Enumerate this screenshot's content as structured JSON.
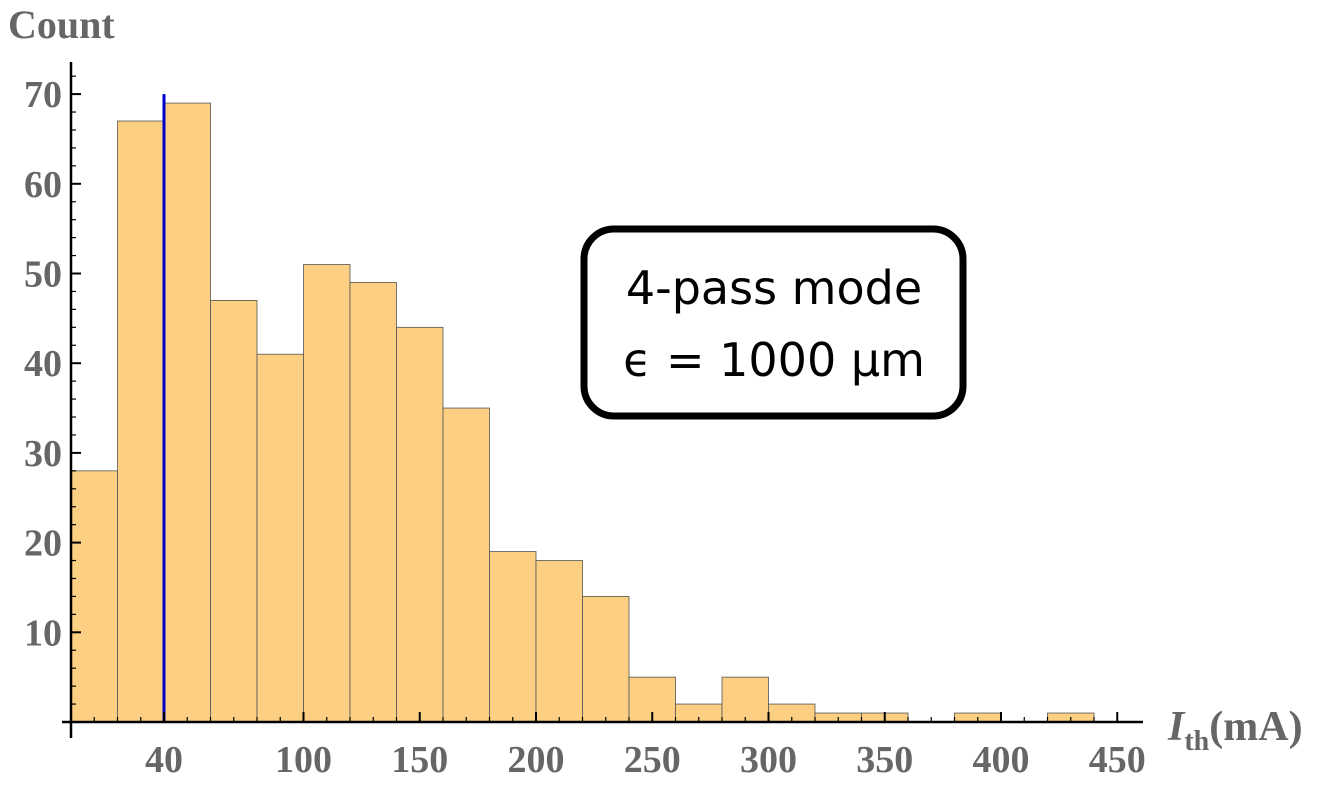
{
  "chart_data": {
    "type": "bar",
    "ylabel": "Count",
    "xlabel_main": "I",
    "xlabel_sub": "th",
    "xlabel_unit": "(mA)",
    "bin_width": 20,
    "bins": [
      {
        "x0": 0,
        "x1": 20,
        "count": 28
      },
      {
        "x0": 20,
        "x1": 40,
        "count": 67
      },
      {
        "x0": 40,
        "x1": 60,
        "count": 69
      },
      {
        "x0": 60,
        "x1": 80,
        "count": 47
      },
      {
        "x0": 80,
        "x1": 100,
        "count": 41
      },
      {
        "x0": 100,
        "x1": 120,
        "count": 51
      },
      {
        "x0": 120,
        "x1": 140,
        "count": 49
      },
      {
        "x0": 140,
        "x1": 160,
        "count": 44
      },
      {
        "x0": 160,
        "x1": 180,
        "count": 35
      },
      {
        "x0": 180,
        "x1": 200,
        "count": 19
      },
      {
        "x0": 200,
        "x1": 220,
        "count": 18
      },
      {
        "x0": 220,
        "x1": 240,
        "count": 14
      },
      {
        "x0": 240,
        "x1": 260,
        "count": 5
      },
      {
        "x0": 260,
        "x1": 280,
        "count": 2
      },
      {
        "x0": 280,
        "x1": 300,
        "count": 5
      },
      {
        "x0": 300,
        "x1": 320,
        "count": 2
      },
      {
        "x0": 320,
        "x1": 340,
        "count": 1
      },
      {
        "x0": 340,
        "x1": 360,
        "count": 1
      },
      {
        "x0": 360,
        "x1": 380,
        "count": 0
      },
      {
        "x0": 380,
        "x1": 400,
        "count": 1
      },
      {
        "x0": 400,
        "x1": 420,
        "count": 0
      },
      {
        "x0": 420,
        "x1": 440,
        "count": 1
      }
    ],
    "xlim": [
      0,
      460
    ],
    "ylim": [
      0,
      73
    ],
    "x_ticks": [
      40,
      100,
      150,
      200,
      250,
      300,
      350,
      400,
      450
    ],
    "y_ticks": [
      10,
      20,
      30,
      40,
      50,
      60,
      70
    ],
    "reference_line": {
      "x": 40,
      "y_top": 70,
      "color": "#0000cc"
    },
    "bar_fill": "#fdcf82",
    "bar_stroke": "#555555",
    "axis_color": "#000000",
    "label_color": "#666666",
    "annotation": {
      "line1": "4-pass mode",
      "line2": "ϵ = 1000 μm"
    },
    "grid": false,
    "legend": "none"
  }
}
